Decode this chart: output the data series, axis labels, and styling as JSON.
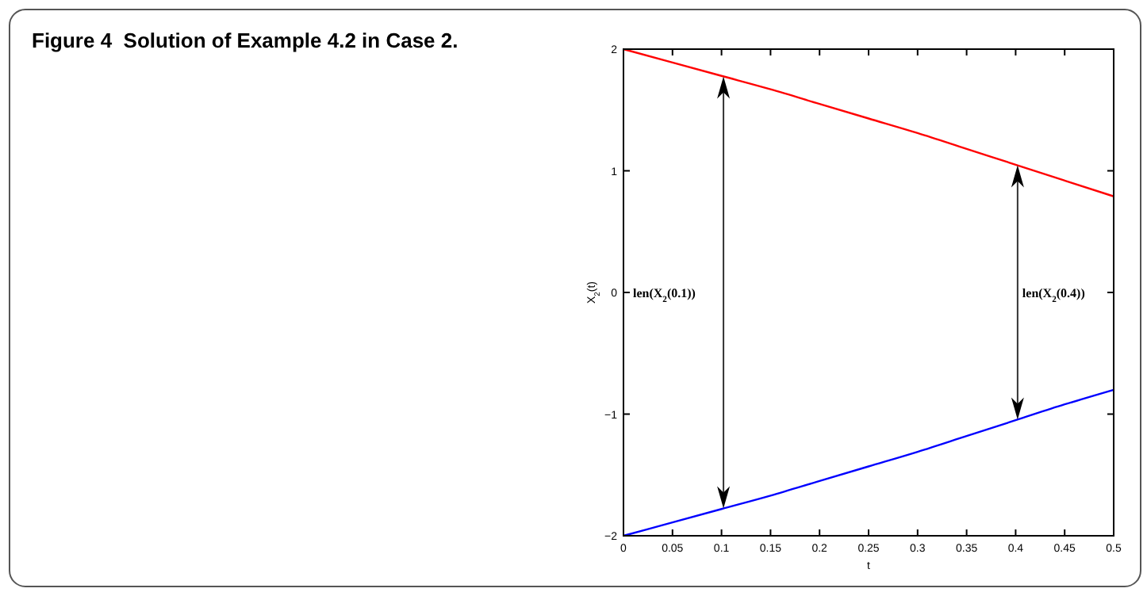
{
  "chart_data": {
    "type": "line",
    "title": "Figure 4  Solution of Example 4.2 in Case 2.",
    "xlabel": "t",
    "ylabel": "X$_{2}$(t)",
    "x": [
      0,
      0.05,
      0.1,
      0.15,
      0.2,
      0.25,
      0.3,
      0.35,
      0.4,
      0.45,
      0.5
    ],
    "series": [
      {
        "color": "#ff0000",
        "values": [
          2,
          1.89,
          1.78,
          1.67,
          1.55,
          1.43,
          1.31,
          1.18,
          1.05,
          0.92,
          0.79
        ]
      },
      {
        "color": "#0000ff",
        "values": [
          -2,
          -1.89,
          -1.78,
          -1.67,
          -1.55,
          -1.43,
          -1.31,
          -1.18,
          -1.05,
          -0.92,
          -0.8
        ]
      }
    ],
    "xlim": [
      0,
      0.5
    ],
    "xticks": [
      0,
      0.05,
      0.1,
      0.15,
      0.2,
      0.25,
      0.3,
      0.35,
      0.4,
      0.45,
      0.5
    ],
    "ylim": [
      -2,
      2
    ],
    "yticks": [
      {
        "value": -2,
        "label": "−2"
      },
      {
        "value": -1,
        "label": "−1"
      },
      0,
      1,
      2
    ],
    "annotations": [
      "len(X$_{2}$(0.1))",
      "len(X$_{2}$(0.4))"
    ],
    "line_style": "solid"
  }
}
